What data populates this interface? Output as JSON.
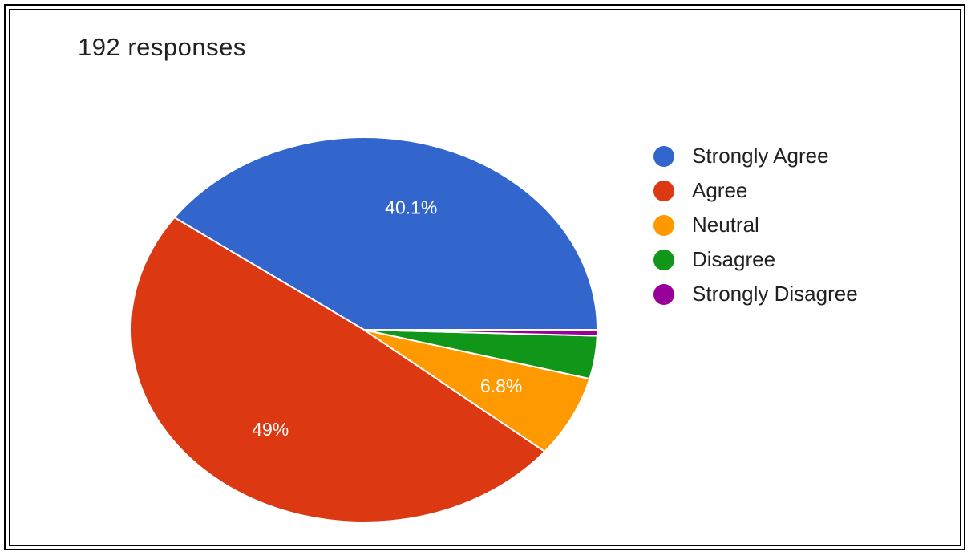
{
  "header": {
    "responses_text": "192 responses"
  },
  "chart_data": {
    "type": "pie",
    "title": "",
    "total_responses": 192,
    "categories": [
      "Strongly Agree",
      "Agree",
      "Neutral",
      "Disagree",
      "Strongly Disagree"
    ],
    "values": [
      40.1,
      49,
      6.8,
      3.6,
      0.5
    ],
    "unit": "%",
    "slice_labels": [
      "40.1%",
      "49%",
      "6.8%",
      "",
      ""
    ],
    "colors": [
      "#3366cc",
      "#dc3912",
      "#ff9900",
      "#109618",
      "#990099"
    ],
    "legend_position": "right"
  }
}
